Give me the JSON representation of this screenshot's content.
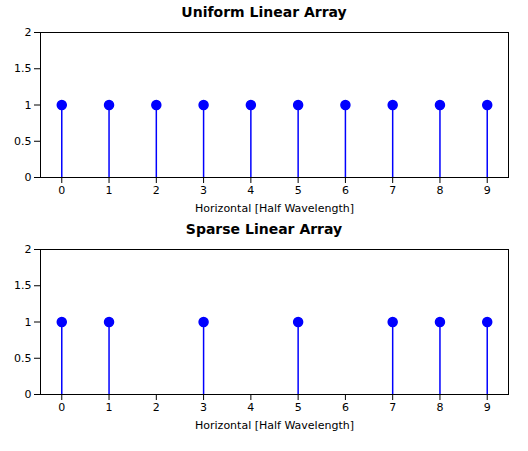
{
  "chart_data": [
    {
      "type": "stem",
      "title": "Uniform Linear Array",
      "xlabel": "Horizontal [Half Wavelength]",
      "x": [
        0,
        1,
        2,
        3,
        4,
        5,
        6,
        7,
        8,
        9
      ],
      "values": [
        1,
        1,
        1,
        1,
        1,
        1,
        1,
        1,
        1,
        1
      ],
      "color": "#0000FF",
      "xlim": [
        -0.45,
        9.45
      ],
      "ylim": [
        0,
        2
      ],
      "xticks": [
        0,
        1,
        2,
        3,
        4,
        5,
        6,
        7,
        8,
        9
      ],
      "yticks": [
        0,
        0.5,
        1,
        1.5,
        2
      ]
    },
    {
      "type": "stem",
      "title": "Sparse Linear Array",
      "xlabel": "Horizontal [Half Wavelength]",
      "x": [
        0,
        1,
        3,
        5,
        7,
        8,
        9
      ],
      "values": [
        1,
        1,
        1,
        1,
        1,
        1,
        1
      ],
      "color": "#0000FF",
      "xlim": [
        -0.45,
        9.45
      ],
      "ylim": [
        0,
        2
      ],
      "xticks": [
        0,
        1,
        2,
        3,
        4,
        5,
        6,
        7,
        8,
        9
      ],
      "yticks": [
        0,
        0.5,
        1,
        1.5,
        2
      ]
    }
  ]
}
